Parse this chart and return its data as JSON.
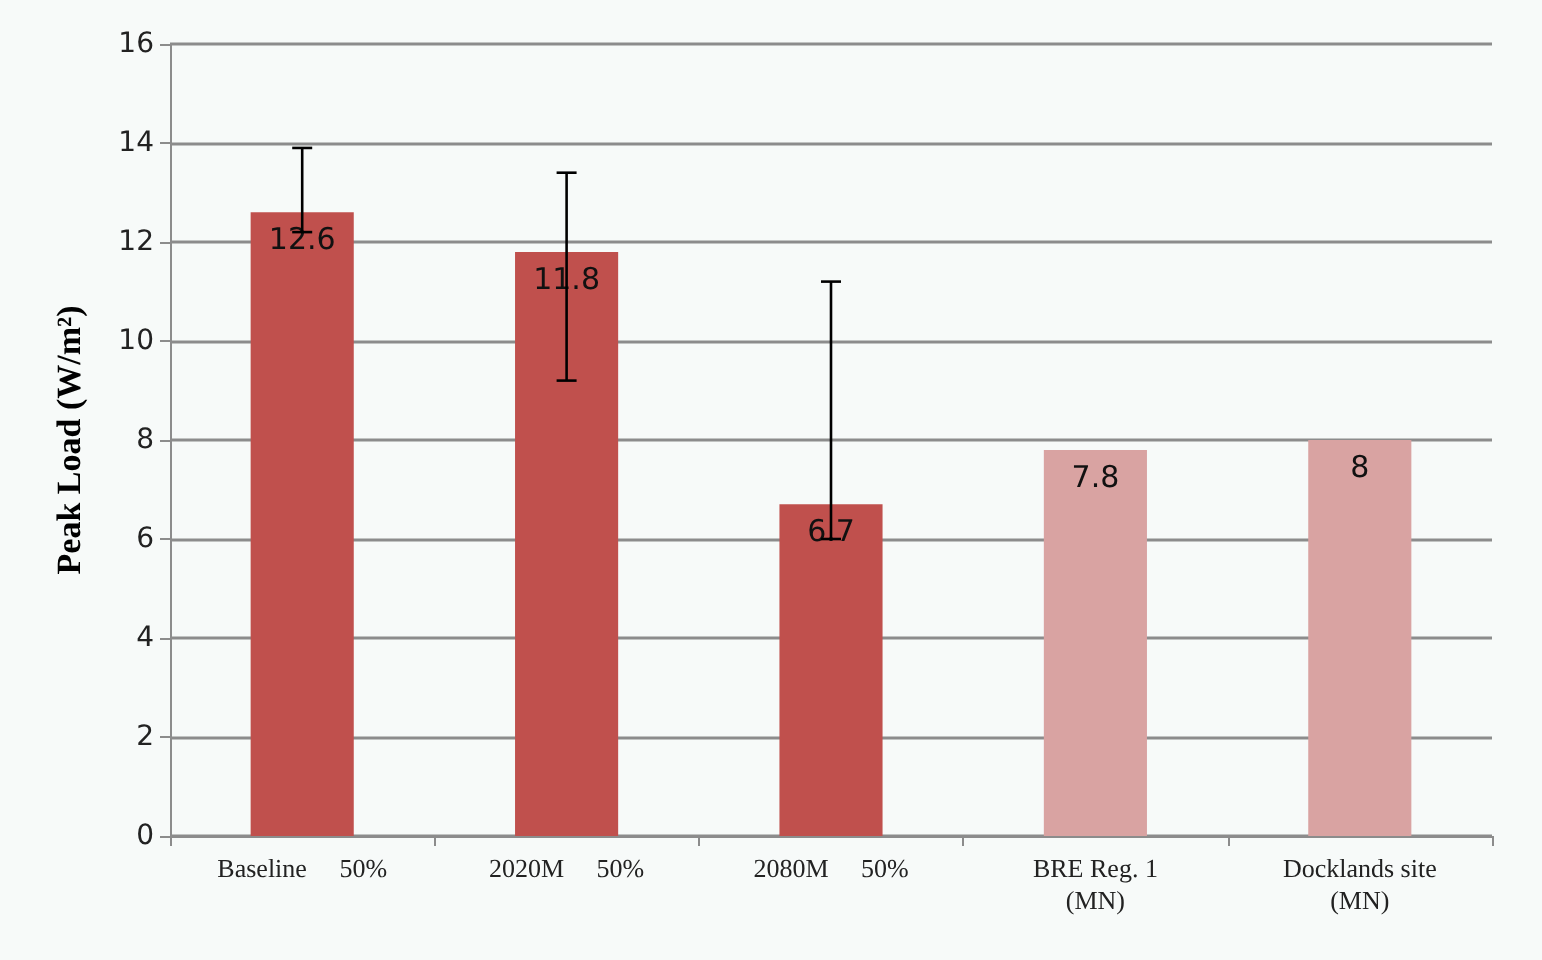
{
  "chart_data": {
    "type": "bar",
    "ylabel": "Peak Load (W/m²)",
    "categories": [
      "Baseline     50%",
      "2020M     50%",
      "2080M     50%",
      "BRE Reg. 1\n(MN)",
      "Docklands site\n(MN)"
    ],
    "values": [
      12.6,
      11.8,
      6.7,
      7.8,
      8
    ],
    "colors": [
      "#c0504d",
      "#c0504d",
      "#c0504d",
      "#d9a3a2",
      "#d9a3a2"
    ],
    "errors": [
      [
        12.2,
        13.9
      ],
      [
        9.2,
        13.4
      ],
      [
        6.0,
        11.2
      ],
      null,
      null
    ],
    "data_labels": true,
    "ylim": [
      0,
      16
    ],
    "yticks": [
      0,
      2,
      4,
      6,
      8,
      10,
      12,
      14,
      16
    ],
    "grid": "y"
  }
}
